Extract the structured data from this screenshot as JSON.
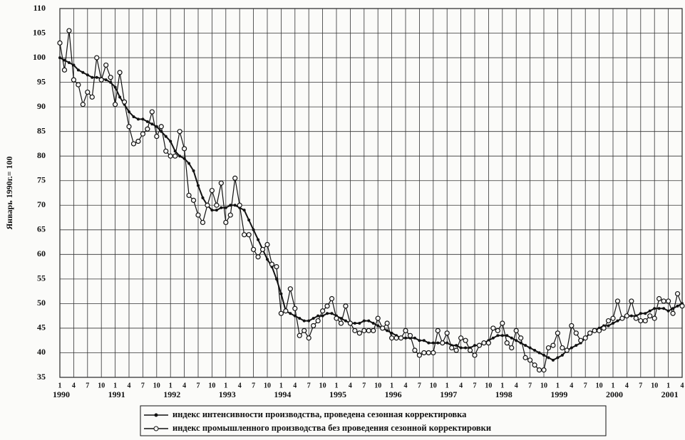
{
  "chart_data": {
    "type": "line",
    "y_label": "Январь 1990г.= 100",
    "ylim": [
      35,
      110
    ],
    "yticks": [
      35,
      40,
      45,
      50,
      55,
      60,
      65,
      70,
      75,
      80,
      85,
      90,
      95,
      100,
      105,
      110
    ],
    "grid": true,
    "categories": [
      "1",
      null,
      null,
      "4",
      null,
      null,
      "7",
      null,
      null,
      "10",
      null,
      null,
      "1",
      null,
      null,
      "4",
      null,
      null,
      "7",
      null,
      null,
      "10",
      null,
      null,
      "1",
      null,
      null,
      "4",
      null,
      null,
      "7",
      null,
      null,
      "10",
      null,
      null,
      "1",
      null,
      null,
      "4",
      null,
      null,
      "7",
      null,
      null,
      "10",
      null,
      null,
      "1",
      null,
      null,
      "4",
      null,
      null,
      "7",
      null,
      null,
      "10",
      null,
      null,
      "1",
      null,
      null,
      "4",
      null,
      null,
      "7",
      null,
      null,
      "10",
      null,
      null,
      "1",
      null,
      null,
      "4",
      null,
      null,
      "7",
      null,
      null,
      "10",
      null,
      null,
      "1",
      null,
      null,
      "4",
      null,
      null,
      "7",
      null,
      null,
      "10",
      null,
      null,
      "1",
      null,
      null,
      "4",
      null,
      null,
      "7",
      null,
      null,
      "10",
      null,
      null,
      "1",
      null,
      null,
      "4",
      null,
      null,
      "7",
      null,
      null,
      "10",
      null,
      null,
      "1",
      null,
      null,
      "4",
      null,
      null,
      "7",
      null,
      null,
      "10",
      null,
      null,
      "1",
      null,
      null,
      "4"
    ],
    "years": [
      "1990",
      "1991",
      "1992",
      "1993",
      "1994",
      "1995",
      "1996",
      "1997",
      "1998",
      "1999",
      "2000",
      "2001"
    ],
    "legend_position": "bottom",
    "series": [
      {
        "name": "индекс интенсивности производства, проведена сезонная корректировка",
        "color": "#111111",
        "marker": "filled",
        "values": [
          100,
          99.5,
          99,
          98.5,
          97.5,
          97,
          96.5,
          96,
          96,
          95.8,
          95.5,
          95,
          94,
          92,
          90.5,
          89,
          88,
          87.5,
          87.5,
          87,
          86.5,
          86,
          85,
          84,
          83,
          81,
          80,
          79.5,
          78.5,
          77,
          74,
          71.5,
          70,
          69,
          69,
          69.5,
          69.5,
          70,
          70,
          69.5,
          69,
          67,
          65,
          63,
          61,
          59,
          57.5,
          55,
          52,
          48.5,
          48,
          47.5,
          47,
          46.5,
          46.5,
          47,
          47.5,
          47.5,
          48,
          48,
          47.5,
          47,
          46.5,
          46,
          46,
          46,
          46.5,
          46.5,
          46,
          45.5,
          45,
          44.5,
          44,
          43.5,
          43,
          43,
          43,
          43,
          42.5,
          42.5,
          42,
          42,
          42,
          42,
          42,
          41.5,
          41.5,
          41,
          41,
          41,
          41.5,
          41.5,
          42,
          42.5,
          43,
          43.5,
          43.5,
          43.5,
          43,
          42.5,
          42,
          41.5,
          41,
          40.5,
          40,
          39.5,
          39,
          38.5,
          39,
          39.5,
          40.5,
          41,
          41.5,
          42,
          43,
          44,
          44.5,
          45,
          45.5,
          45.5,
          46,
          46.5,
          47,
          47.5,
          47.5,
          47.5,
          48,
          48,
          48.5,
          49,
          49,
          49,
          48.5,
          49,
          49.5,
          50
        ]
      },
      {
        "name": "индекс промышленного производства без проведения сезонной корректировки",
        "color": "#111111",
        "marker": "open",
        "values": [
          103,
          97.5,
          105.5,
          95.5,
          94.5,
          90.5,
          93,
          92,
          100,
          95.5,
          98.5,
          96,
          90.5,
          97,
          91,
          86,
          82.5,
          83,
          84.5,
          85.5,
          89,
          84,
          86,
          81,
          80,
          80,
          85,
          81.5,
          72,
          71,
          68,
          66.5,
          70,
          73,
          70,
          74.5,
          66.5,
          68,
          75.5,
          70,
          64,
          64,
          61,
          59.5,
          61,
          62,
          58,
          57.5,
          48,
          48.5,
          53,
          49,
          43.5,
          44.5,
          43,
          45.5,
          46.5,
          48.5,
          49.5,
          51,
          47,
          46,
          49.5,
          46,
          44.5,
          44,
          44.5,
          44.5,
          44.5,
          47,
          45,
          46,
          43,
          43,
          43,
          44.5,
          43.5,
          40.5,
          39.5,
          40,
          40,
          40,
          44.5,
          42,
          44,
          41,
          40.5,
          43,
          42.5,
          40.5,
          39.5,
          41.5,
          42,
          42,
          45,
          44.5,
          46,
          42,
          41,
          44.5,
          43,
          39,
          38.5,
          37.5,
          36.5,
          36.5,
          41,
          41.5,
          44,
          41,
          40.5,
          45.5,
          44,
          42.5,
          43,
          44,
          44.5,
          44.5,
          45,
          46.5,
          47,
          50.5,
          47,
          47.5,
          50.5,
          47,
          46.5,
          46.5,
          47.5,
          47,
          51,
          50.5,
          50.5,
          48,
          52,
          49.5
        ]
      }
    ]
  }
}
